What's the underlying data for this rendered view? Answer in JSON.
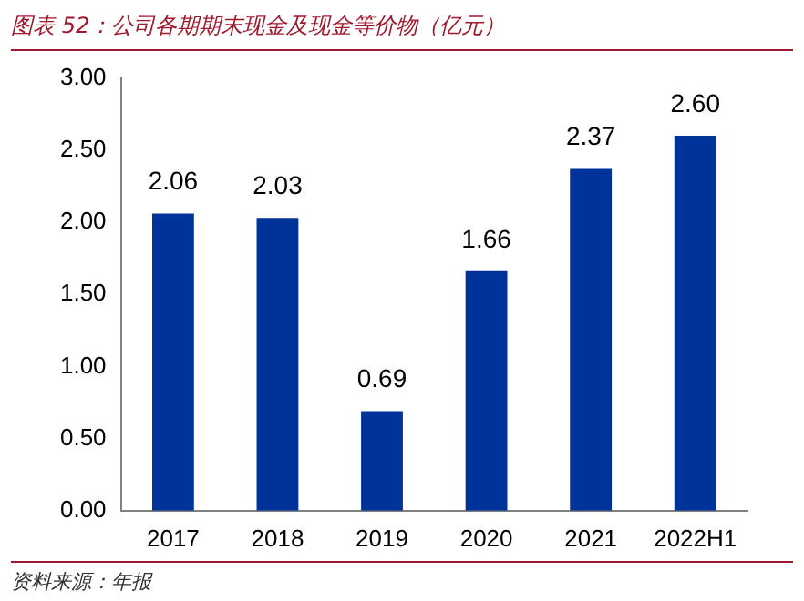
{
  "chart_data": {
    "type": "bar",
    "title": "图表 52：公司各期期末现金及现金等价物（亿元）",
    "categories": [
      "2017",
      "2018",
      "2019",
      "2020",
      "2021",
      "2022H1"
    ],
    "values": [
      2.06,
      2.03,
      0.69,
      1.66,
      2.37,
      2.6
    ],
    "value_labels": [
      "2.06",
      "2.03",
      "0.69",
      "1.66",
      "2.37",
      "2.60"
    ],
    "color": "#003399",
    "ylim": [
      0,
      3
    ],
    "yticks": [
      {
        "value": 0,
        "label": "0.00"
      },
      {
        "value": 0.5,
        "label": "0.50"
      },
      {
        "value": 1,
        "label": "1.00"
      },
      {
        "value": 1.5,
        "label": "1.50"
      },
      {
        "value": 2,
        "label": "2.00"
      },
      {
        "value": 2.5,
        "label": "2.50"
      },
      {
        "value": 3,
        "label": "3.00"
      }
    ],
    "grid": false,
    "legend": false,
    "annotations": [
      "资料来源：年报"
    ]
  }
}
